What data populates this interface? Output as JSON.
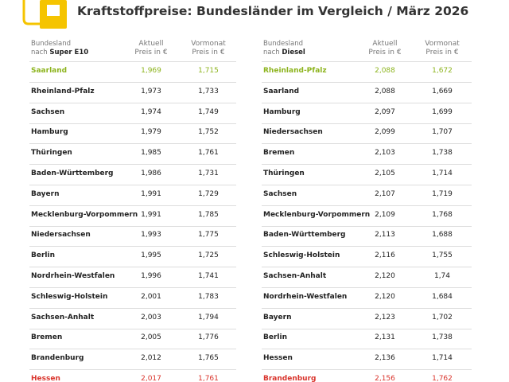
{
  "title": "Kraftstoffpreise: Bundesländer im Vergleich / März 2026",
  "tables": [
    {
      "header": {
        "region": "Bundesland",
        "prefix": "nach",
        "fuel": "Super E10",
        "current": "Aktuell",
        "current_unit": "Preis in €",
        "previous": "Vormonat",
        "previous_unit": "Preis in €"
      },
      "rows": [
        [
          "Saarland",
          "1,969",
          "1,715"
        ],
        [
          "Rheinland-Pfalz",
          "1,973",
          "1,733"
        ],
        [
          "Sachsen",
          "1,974",
          "1,749"
        ],
        [
          "Hamburg",
          "1,979",
          "1,752"
        ],
        [
          "Thüringen",
          "1,985",
          "1,761"
        ],
        [
          "Baden-Württemberg",
          "1,986",
          "1,731"
        ],
        [
          "Bayern",
          "1,991",
          "1,729"
        ],
        [
          "Mecklenburg-Vorpommern",
          "1,991",
          "1,785"
        ],
        [
          "Niedersachsen",
          "1,993",
          "1,775"
        ],
        [
          "Berlin",
          "1,995",
          "1,725"
        ],
        [
          "Nordrhein-Westfalen",
          "1,996",
          "1,741"
        ],
        [
          "Schleswig-Holstein",
          "2,001",
          "1,783"
        ],
        [
          "Sachsen-Anhalt",
          "2,003",
          "1,794"
        ],
        [
          "Bremen",
          "2,005",
          "1,776"
        ],
        [
          "Brandenburg",
          "2,012",
          "1,765"
        ],
        [
          "Hessen",
          "2,017",
          "1,761"
        ]
      ]
    },
    {
      "header": {
        "region": "Bundesland",
        "prefix": "nach",
        "fuel": "Diesel",
        "current": "Aktuell",
        "current_unit": "Preis in €",
        "previous": "Vormonat",
        "previous_unit": "Preis in €"
      },
      "rows": [
        [
          "Rheinland-Pfalz",
          "2,088",
          "1,672"
        ],
        [
          "Saarland",
          "2,088",
          "1,669"
        ],
        [
          "Hamburg",
          "2,097",
          "1,699"
        ],
        [
          "Niedersachsen",
          "2,099",
          "1,707"
        ],
        [
          "Bremen",
          "2,103",
          "1,738"
        ],
        [
          "Thüringen",
          "2,105",
          "1,714"
        ],
        [
          "Sachsen",
          "2,107",
          "1,719"
        ],
        [
          "Mecklenburg-Vorpommern",
          "2,109",
          "1,768"
        ],
        [
          "Baden-Württemberg",
          "2,113",
          "1,688"
        ],
        [
          "Schleswig-Holstein",
          "2,116",
          "1,755"
        ],
        [
          "Sachsen-Anhalt",
          "2,120",
          "1,74"
        ],
        [
          "Nordrhein-Westfalen",
          "2,120",
          "1,684"
        ],
        [
          "Bayern",
          "2,123",
          "1,702"
        ],
        [
          "Berlin",
          "2,131",
          "1,738"
        ],
        [
          "Hessen",
          "2,136",
          "1,714"
        ],
        [
          "Brandenburg",
          "2,156",
          "1,762"
        ]
      ]
    }
  ]
}
